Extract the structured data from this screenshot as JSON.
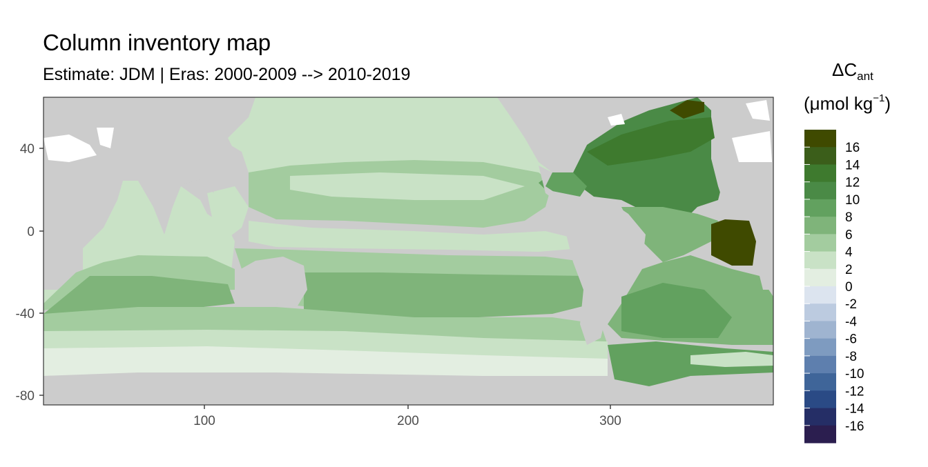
{
  "title": "Column inventory map",
  "subtitle": "Estimate: JDM  | Eras: 2000-2009 --> 2010-2019",
  "legend": {
    "title_symbol": "ΔC",
    "title_subscript": "ant",
    "unit_prefix": "(μmol kg",
    "unit_superscript": "−1",
    "unit_suffix": ")",
    "labels": [
      "16",
      "14",
      "12",
      "10",
      "8",
      "6",
      "4",
      "2",
      "0",
      "-2",
      "-4",
      "-6",
      "-8",
      "-10",
      "-12",
      "-14",
      "-16"
    ],
    "colors": [
      "#3f4a00",
      "#3b5e1a",
      "#3e7a2e",
      "#4a8a46",
      "#62a15f",
      "#7fb47a",
      "#a3cc9f",
      "#c9e2c6",
      "#e3eee1",
      "#dce4ef",
      "#bccbe0",
      "#9fb4d0",
      "#7e9bc0",
      "#5e7fae",
      "#3f6599",
      "#2a4a85",
      "#252e66",
      "#2b1e4f"
    ]
  },
  "axes": {
    "x_ticks": [
      "100",
      "200",
      "300"
    ],
    "y_ticks": [
      "40",
      "0",
      "-40",
      "-80"
    ]
  },
  "colors": {
    "land": "#cccccc",
    "ocean_light": "#c9e2c6",
    "ocean_medium": "#a3cc9f",
    "ocean_green": "#7fb47a",
    "ocean_strong": "#4a8a46",
    "ocean_dark": "#3f4a00",
    "southern_band": "#e3eee1",
    "ice": "#ffffff"
  }
}
